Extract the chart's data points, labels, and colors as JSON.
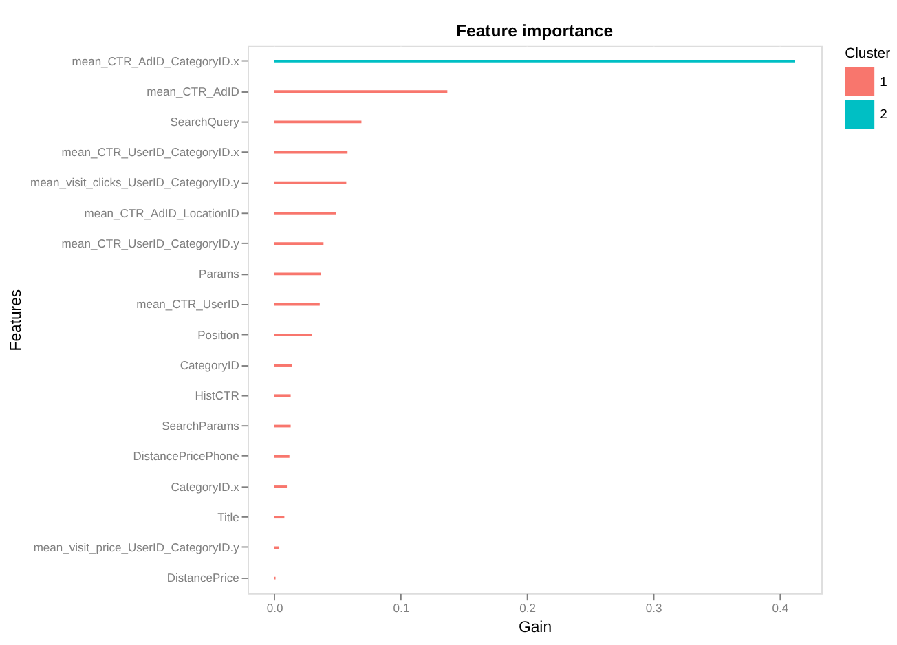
{
  "chart_data": {
    "type": "bar",
    "orientation": "horizontal",
    "title": "Feature importance",
    "xlabel": "Gain",
    "ylabel": "Features",
    "legend_title": "Cluster",
    "categories": [
      "mean_CTR_AdID_CategoryID.x",
      "mean_CTR_AdID",
      "SearchQuery",
      "mean_CTR_UserID_CategoryID.x",
      "mean_visit_clicks_UserID_CategoryID.y",
      "mean_CTR_AdID_LocationID",
      "mean_CTR_UserID_CategoryID.y",
      "Params",
      "mean_CTR_UserID",
      "Position",
      "CategoryID",
      "HistCTR",
      "SearchParams",
      "DistancePricePhone",
      "CategoryID.x",
      "Title",
      "mean_visit_price_UserID_CategoryID.y",
      "DistancePrice"
    ],
    "series": [
      {
        "name": "1",
        "color": "#f8766d",
        "values": [
          null,
          0.137,
          0.069,
          0.058,
          0.057,
          0.049,
          0.039,
          0.037,
          0.036,
          0.03,
          0.014,
          0.013,
          0.013,
          0.012,
          0.01,
          0.008,
          0.004,
          0.001
        ]
      },
      {
        "name": "2",
        "color": "#00bfc4",
        "values": [
          0.412,
          null,
          null,
          null,
          null,
          null,
          null,
          null,
          null,
          null,
          null,
          null,
          null,
          null,
          null,
          null,
          null,
          null
        ]
      }
    ],
    "xlim": [
      -0.021,
      0.433
    ],
    "xticks": [
      {
        "value": 0,
        "label": "0.0"
      },
      0.1,
      0.2,
      0.3,
      0.4
    ],
    "grid": "x",
    "legend": "right"
  }
}
